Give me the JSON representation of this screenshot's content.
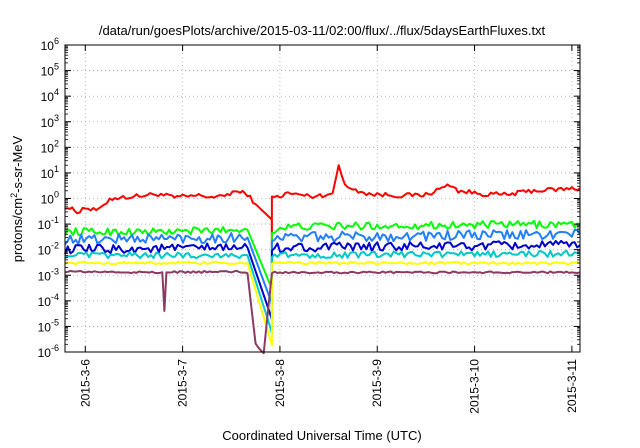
{
  "chart_data": {
    "type": "line",
    "title": "/data/run/goesPlots/archive/2015-03-11/02:00/flux/../flux/5daysEarthFluxes.txt",
    "xlabel": "Coordinated Universal Time (UTC)",
    "ylabel": "protons/cm²-s-sr-MeV",
    "ylabel_parts": {
      "pre": "protons/cm",
      "sup": "2",
      "post": "-s-sr-MeV"
    },
    "y_scale": "log",
    "ylim": [
      1e-06,
      1000000.0
    ],
    "y_ticks": [
      {
        "base": "10",
        "exp": "-6"
      },
      {
        "base": "10",
        "exp": "-5"
      },
      {
        "base": "10",
        "exp": "-4"
      },
      {
        "base": "10",
        "exp": "-3"
      },
      {
        "base": "10",
        "exp": "-2"
      },
      {
        "base": "10",
        "exp": "-1"
      },
      {
        "base": "10",
        "exp": "0"
      },
      {
        "base": "10",
        "exp": "1"
      },
      {
        "base": "10",
        "exp": "2"
      },
      {
        "base": "10",
        "exp": "3"
      },
      {
        "base": "10",
        "exp": "4"
      },
      {
        "base": "10",
        "exp": "5"
      },
      {
        "base": "10",
        "exp": "6"
      }
    ],
    "x_ticks": [
      "2015-3-6",
      "2015-3-7",
      "2015-3-8",
      "2015-3-9",
      "2015-3-10",
      "2015-3-11"
    ],
    "xlim": [
      "2015-03-05T19:00",
      "2015-03-11T02:00"
    ],
    "grid": true,
    "series": [
      {
        "color": "#ff0000",
        "base": 1.2,
        "amp": 0.09,
        "points": [
          [
            "2015-03-05T19:00",
            0.5
          ],
          [
            "2015-03-05T22:00",
            0.3
          ],
          [
            "2015-03-06T00:00",
            0.45
          ],
          [
            "2015-03-06T02:00",
            0.35
          ],
          [
            "2015-03-06T04:00",
            0.4
          ],
          [
            "2015-03-06T06:00",
            1.0
          ],
          [
            "2015-03-06T12:00",
            1.2
          ],
          [
            "2015-03-06T18:00",
            1.5
          ],
          [
            "2015-03-06T22:00",
            1.1
          ],
          [
            "2015-03-07T04:00",
            1.3
          ],
          [
            "2015-03-07T09:00",
            1.1
          ],
          [
            "2015-03-07T13:00",
            1.9
          ],
          [
            "2015-03-07T16:00",
            1.5
          ],
          [
            "2015-03-07T18:00",
            0.6
          ],
          [
            "2015-03-07T22:00",
            0.15
          ],
          [
            "2015-03-07T22:01",
            0.011
          ],
          [
            "2015-03-07T22:02",
            1.0
          ],
          [
            "2015-03-08T02:00",
            1.6
          ],
          [
            "2015-03-08T08:00",
            1.2
          ],
          [
            "2015-03-08T13:00",
            1.6
          ],
          [
            "2015-03-08T14:30",
            20
          ],
          [
            "2015-03-08T16:00",
            3
          ],
          [
            "2015-03-08T22:00",
            1.5
          ],
          [
            "2015-03-09T06:00",
            1.3
          ],
          [
            "2015-03-09T12:00",
            1.4
          ],
          [
            "2015-03-09T18:00",
            3.5
          ],
          [
            "2015-03-09T20:00",
            2.0
          ],
          [
            "2015-03-10T02:00",
            1.5
          ],
          [
            "2015-03-10T08:00",
            1.4
          ],
          [
            "2015-03-10T14:00",
            2.0
          ],
          [
            "2015-03-11T02:00",
            2.5
          ]
        ]
      },
      {
        "color": "#00ff00",
        "base": 0.09,
        "amp": 0.15,
        "points": [
          [
            "2015-03-05T19:00",
            0.05
          ],
          [
            "2015-03-06T20:00",
            0.05
          ],
          [
            "2015-03-07T14:00",
            0.06
          ],
          [
            "2015-03-07T16:00",
            0.06
          ],
          [
            "2015-03-07T22:00",
            0.0003
          ],
          [
            "2015-03-07T22:01",
            0.0002
          ],
          [
            "2015-03-07T22:02",
            0.06
          ],
          [
            "2015-03-08T04:00",
            0.08
          ],
          [
            "2015-03-11T02:00",
            0.1
          ]
        ]
      },
      {
        "color": "#2080ff",
        "base": 0.045,
        "amp": 0.2,
        "points": [
          [
            "2015-03-05T19:00",
            0.025
          ],
          [
            "2015-03-07T14:00",
            0.03
          ],
          [
            "2015-03-07T16:00",
            0.03
          ],
          [
            "2015-03-07T22:00",
            8e-05
          ],
          [
            "2015-03-07T22:01",
            6e-05
          ],
          [
            "2015-03-07T22:02",
            0.03
          ],
          [
            "2015-03-11T02:00",
            0.04
          ]
        ]
      },
      {
        "color": "#0000cc",
        "base": 0.018,
        "amp": 0.18,
        "points": [
          [
            "2015-03-05T19:00",
            0.01
          ],
          [
            "2015-03-07T14:00",
            0.012
          ],
          [
            "2015-03-07T16:00",
            0.012
          ],
          [
            "2015-03-07T22:00",
            2e-05
          ],
          [
            "2015-03-07T22:01",
            1.8e-05
          ],
          [
            "2015-03-07T22:02",
            0.012
          ],
          [
            "2015-03-11T02:00",
            0.015
          ]
        ]
      },
      {
        "color": "#00c8c8",
        "base": 0.008,
        "amp": 0.12,
        "points": [
          [
            "2015-03-05T19:00",
            0.006
          ],
          [
            "2015-03-07T14:00",
            0.006
          ],
          [
            "2015-03-07T16:00",
            0.006
          ],
          [
            "2015-03-07T22:00",
            6e-06
          ],
          [
            "2015-03-07T22:01",
            5e-06
          ],
          [
            "2015-03-07T22:02",
            0.006
          ],
          [
            "2015-03-11T02:00",
            0.007
          ]
        ]
      },
      {
        "color": "#ffff00",
        "base": 0.003,
        "amp": 0.05,
        "points": [
          [
            "2015-03-05T19:00",
            0.003
          ],
          [
            "2015-03-07T14:00",
            0.003
          ],
          [
            "2015-03-07T16:00",
            0.003
          ],
          [
            "2015-03-07T22:00",
            2e-06
          ],
          [
            "2015-03-07T22:01",
            1.8e-06
          ],
          [
            "2015-03-07T22:02",
            0.003
          ],
          [
            "2015-03-11T02:00",
            0.003
          ]
        ]
      },
      {
        "color": "#8b3a62",
        "base": 0.0013,
        "amp": 0.04,
        "points": [
          [
            "2015-03-05T19:00",
            0.0014
          ],
          [
            "2015-03-06T12:00",
            0.0013
          ],
          [
            "2015-03-06T19:00",
            0.0013
          ],
          [
            "2015-03-06T19:30",
            4e-05
          ],
          [
            "2015-03-06T20:00",
            0.0013
          ],
          [
            "2015-03-07T14:00",
            0.0014
          ],
          [
            "2015-03-07T16:00",
            0.0012
          ],
          [
            "2015-03-07T18:00",
            2e-06
          ],
          [
            "2015-03-07T20:00",
            9e-07
          ],
          [
            "2015-03-07T22:02",
            0.0013
          ],
          [
            "2015-03-11T02:00",
            0.0013
          ]
        ]
      }
    ]
  }
}
